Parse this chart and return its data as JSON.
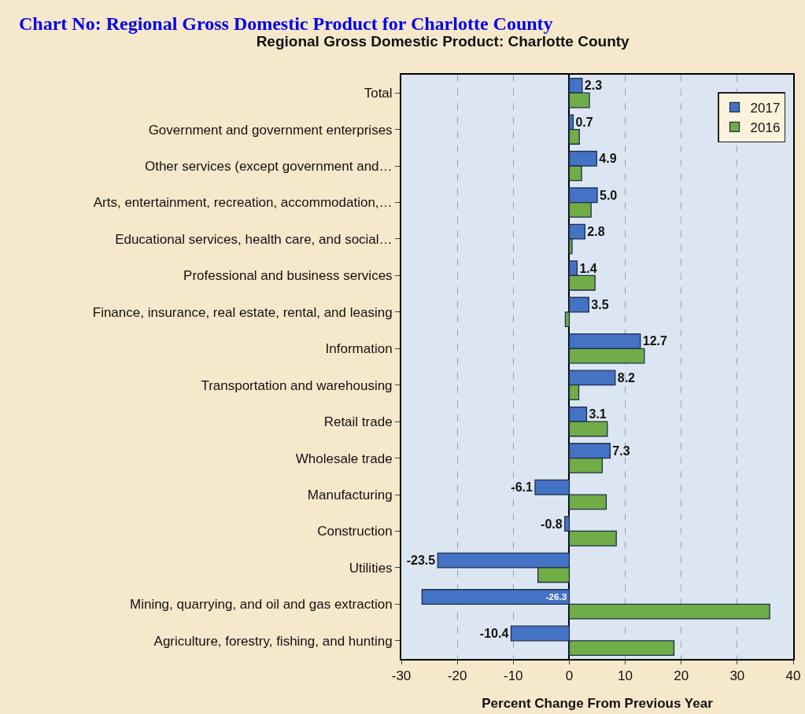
{
  "chart_data": {
    "type": "bar",
    "orientation": "horizontal",
    "title": "Regional Gross Domestic Product: Charlotte County",
    "xlabel": "Percent Change From Previous Year",
    "annotations": [
      "Chart No: Regional Gross Domestic Product for Charlotte County"
    ],
    "categories": [
      "Total",
      "Government and government enterprises",
      "Other services (except government and…",
      "Arts, entertainment, recreation, accommodation,…",
      "Educational services, health care, and social…",
      "Professional and business services",
      "Finance, insurance, real estate, rental, and leasing",
      "Information",
      "Transportation and warehousing",
      "Retail trade",
      "Wholesale trade",
      "Manufacturing",
      "Construction",
      "Utilities",
      "Mining, quarrying, and oil and gas extraction",
      "Agriculture, forestry, fishing, and hunting"
    ],
    "series": [
      {
        "name": "2017",
        "color": "#4472c4",
        "values": [
          2.3,
          0.7,
          4.9,
          5.0,
          2.8,
          1.4,
          3.5,
          12.7,
          8.2,
          3.1,
          7.3,
          -6.1,
          -0.8,
          -23.5,
          -26.3,
          -10.4
        ],
        "value_labels": [
          "2.3",
          "0.7",
          "4.9",
          "5.0",
          "2.8",
          "1.4",
          "3.5",
          "12.7",
          "8.2",
          "3.1",
          "7.3",
          "-6.1",
          "-0.8",
          "-23.5",
          "-26.3",
          "-10.4"
        ]
      },
      {
        "name": "2016",
        "color": "#70ad47",
        "values": [
          3.6,
          1.8,
          2.2,
          3.9,
          0.5,
          4.6,
          -0.7,
          13.4,
          1.7,
          6.8,
          5.9,
          6.6,
          8.4,
          -5.6,
          35.8,
          18.7
        ]
      }
    ],
    "xlim": [
      -30,
      40
    ],
    "xticks": [
      -30,
      -20,
      -10,
      0,
      10,
      20,
      30,
      40
    ],
    "grid": "x",
    "legend": "top right"
  }
}
